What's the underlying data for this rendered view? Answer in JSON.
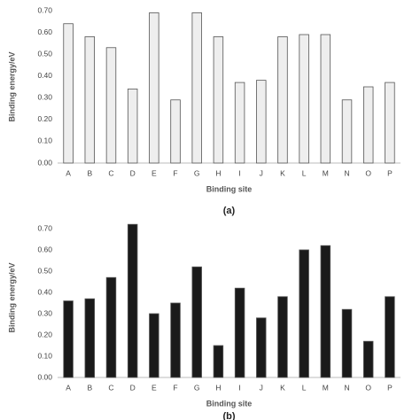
{
  "chart_data": [
    {
      "type": "bar",
      "caption": "(a)",
      "x_label": "Binding site",
      "y_label": "Binding energy/eV",
      "categories": [
        "A",
        "B",
        "C",
        "D",
        "E",
        "F",
        "G",
        "H",
        "I",
        "J",
        "K",
        "L",
        "M",
        "N",
        "O",
        "P"
      ],
      "values": [
        0.64,
        0.58,
        0.53,
        0.34,
        0.69,
        0.29,
        0.69,
        0.58,
        0.37,
        0.38,
        0.58,
        0.59,
        0.59,
        0.29,
        0.35,
        0.37
      ],
      "color": "#eeeeee",
      "ylim": [
        0,
        0.7
      ],
      "yticks": [
        {
          "value": 0,
          "label": "0.00"
        },
        {
          "value": 0.1,
          "label": "0.10"
        },
        {
          "value": 0.2,
          "label": "0.20"
        },
        {
          "value": 0.3,
          "label": "0.30"
        },
        {
          "value": 0.4,
          "label": "0.40"
        },
        {
          "value": 0.5,
          "label": "0.50"
        },
        {
          "value": 0.6,
          "label": "0.60"
        },
        {
          "value": 0.7,
          "label": "0.70"
        }
      ],
      "grid": false
    },
    {
      "type": "bar",
      "caption": "(b)",
      "x_label": "Binding site",
      "y_label": "Binding energy/eV",
      "categories": [
        "A",
        "B",
        "C",
        "D",
        "E",
        "F",
        "G",
        "H",
        "I",
        "J",
        "K",
        "L",
        "M",
        "N",
        "O",
        "P"
      ],
      "values": [
        0.36,
        0.37,
        0.47,
        0.72,
        0.3,
        0.35,
        0.52,
        0.15,
        0.42,
        0.28,
        0.38,
        0.6,
        0.62,
        0.32,
        0.17,
        0.38
      ],
      "color": "#1a1a1a",
      "ylim": [
        0,
        0.75
      ],
      "yticks": [
        {
          "value": 0,
          "label": "0.00"
        },
        {
          "value": 0.1,
          "label": "0.10"
        },
        {
          "value": 0.2,
          "label": "0.20"
        },
        {
          "value": 0.3,
          "label": "0.30"
        },
        {
          "value": 0.4,
          "label": "0.40"
        },
        {
          "value": 0.5,
          "label": "0.50"
        },
        {
          "value": 0.6,
          "label": "0.60"
        },
        {
          "value": 0.7,
          "label": "0.70"
        }
      ],
      "grid": false
    }
  ]
}
